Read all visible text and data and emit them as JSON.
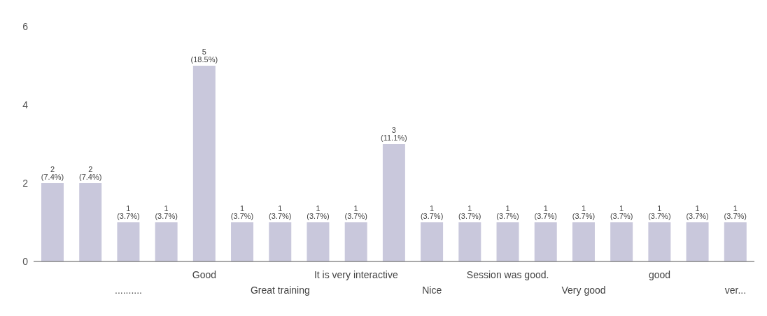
{
  "chart_data": {
    "type": "bar",
    "categories": [
      null,
      null,
      "..........",
      null,
      "Good",
      null,
      "Great training",
      null,
      "It is very interactive",
      null,
      "Nice",
      null,
      "Session was good.",
      null,
      "Very good",
      null,
      "good",
      null,
      "ver..."
    ],
    "values": [
      2,
      2,
      1,
      1,
      5,
      1,
      1,
      1,
      1,
      3,
      1,
      1,
      1,
      1,
      1,
      1,
      1,
      1,
      1
    ],
    "value_labels": [
      "2 (7.4%)",
      "2 (7.4%)",
      "1 (3.7%)",
      "1 (3.7%)",
      "5 (18.5%)",
      "1 (3.7%)",
      "1 (3.7%)",
      "1 (3.7%)",
      "1 (3.7%)",
      "3 (11.1%)",
      "1 (3.7%)",
      "1 (3.7%)",
      "1 (3.7%)",
      "1 (3.7%)",
      "1 (3.7%)",
      "1 (3.7%)",
      "1 (3.7%)",
      "1 (3.7%)",
      "1 (3.7%)"
    ],
    "color": "#c9c8dc",
    "ylim": [
      0,
      6
    ],
    "yticks": [
      0,
      2,
      4,
      6
    ],
    "grid": false,
    "legend": false
  }
}
